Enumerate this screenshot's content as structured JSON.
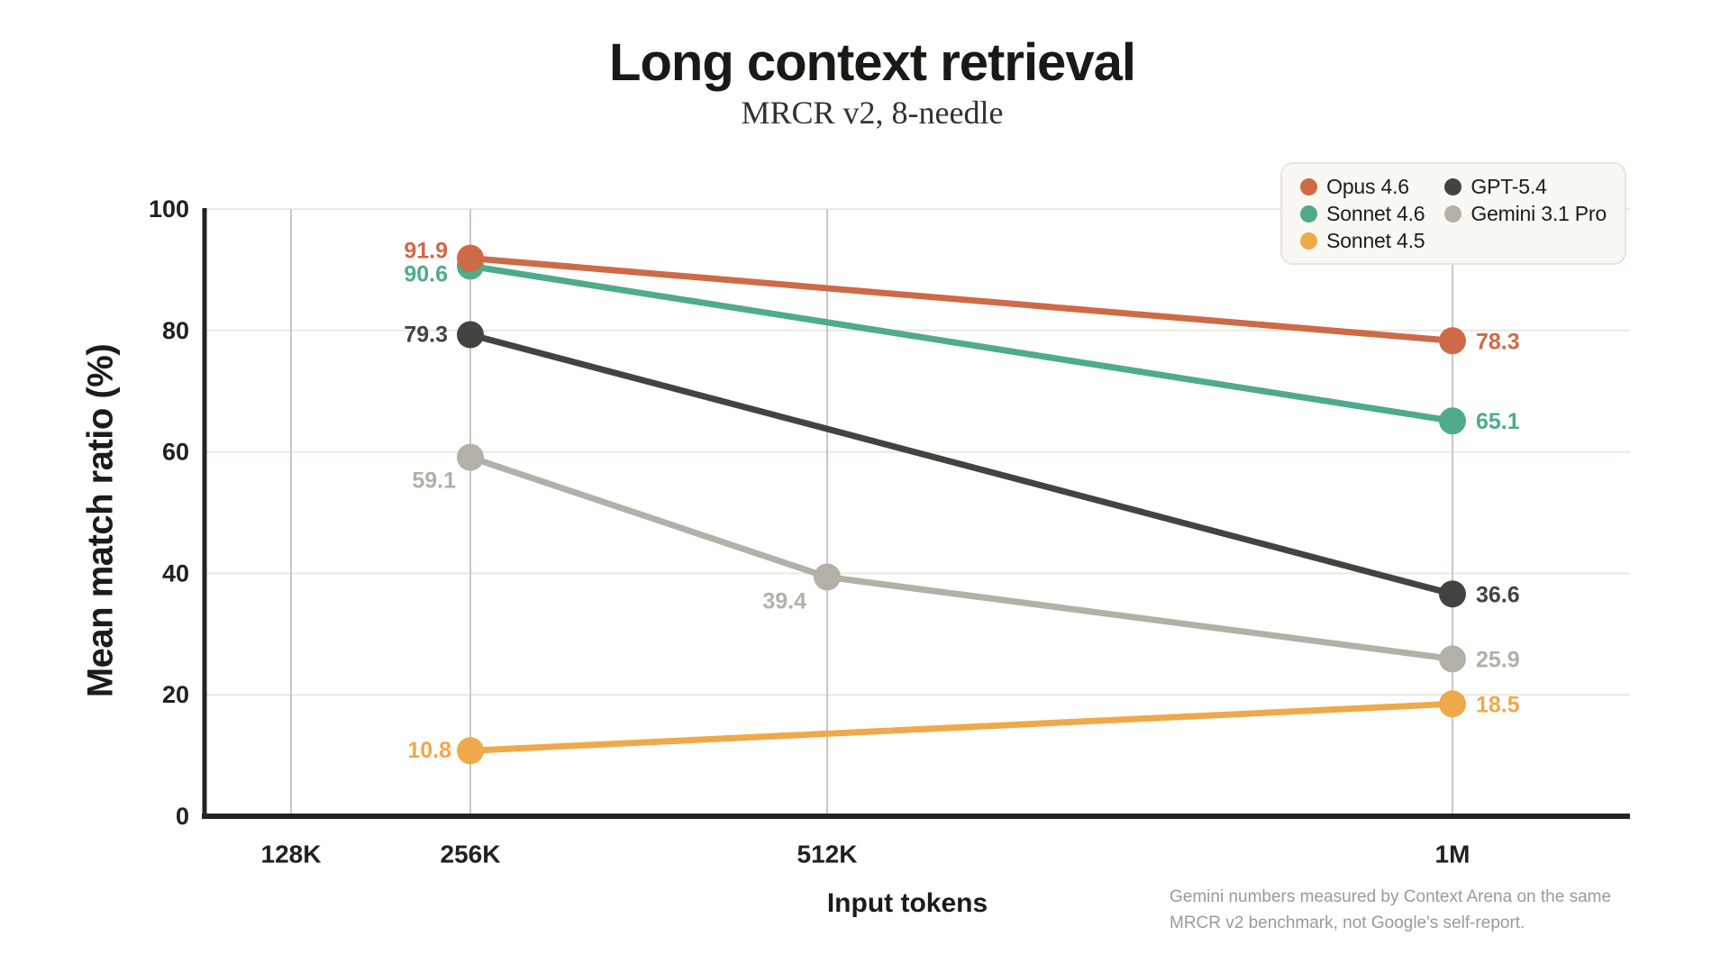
{
  "page": {
    "title": "Long context retrieval",
    "subtitle": "MRCR v2, 8-needle",
    "footnote": "Gemini numbers measured by Context Arena on the same MRCR v2 benchmark, not Google's self-report."
  },
  "colors": {
    "background": "#FFFFFF",
    "axis": "#232321",
    "tick_text": "#212120",
    "grid_horizontal": "#EBE8DE",
    "grid_vertical": "#C9C7C1",
    "legend_background": "#FAF8F2",
    "legend_border": "#E8E4DA",
    "footnote_text": "#9C9A93"
  },
  "chart_data": {
    "type": "line",
    "title": "Long context retrieval",
    "subtitle": "MRCR v2, 8-needle",
    "xlabel": "Input tokens",
    "ylabel": "Mean match ratio (%)",
    "categories": [
      "128K",
      "256K",
      "512K",
      "1M"
    ],
    "ylim": [
      0,
      100
    ],
    "y_ticks": [
      0,
      20,
      40,
      60,
      80,
      100
    ],
    "grid": true,
    "legend_position": "top-right-inside",
    "point_labels_shown": true,
    "series": [
      {
        "name": "Opus 4.6",
        "color": "#CE6A48",
        "values": [
          null,
          91.9,
          null,
          78.3
        ]
      },
      {
        "name": "Sonnet 4.6",
        "color": "#4FAB8A",
        "values": [
          null,
          90.6,
          null,
          65.1
        ]
      },
      {
        "name": "Sonnet 4.5",
        "color": "#EFA94A",
        "values": [
          null,
          10.8,
          null,
          18.5
        ]
      },
      {
        "name": "GPT-5.4",
        "color": "#434340",
        "values": [
          null,
          79.3,
          null,
          36.6
        ]
      },
      {
        "name": "Gemini 3.1 Pro",
        "color": "#B2B0A7",
        "values": [
          null,
          59.1,
          39.4,
          25.9
        ]
      }
    ]
  }
}
